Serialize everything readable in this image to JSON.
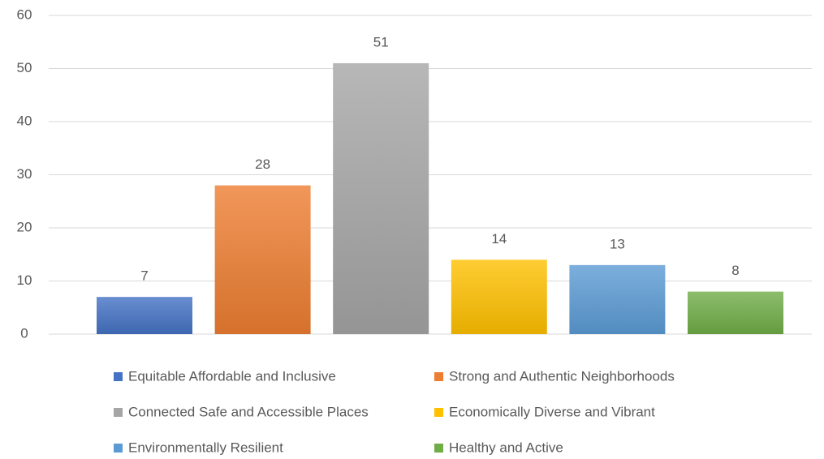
{
  "chart_data": {
    "type": "bar",
    "series": [
      {
        "name": "Equitable Affordable and Inclusive",
        "color": "#4472c4",
        "values": [
          7
        ]
      },
      {
        "name": "Strong and Authentic Neighborhoods",
        "color": "#ed7d31",
        "values": [
          28
        ]
      },
      {
        "name": "Connected Safe and Accessible Places",
        "color": "#a5a5a5",
        "values": [
          51
        ]
      },
      {
        "name": "Economically Diverse and Vibrant",
        "color": "#ffc000",
        "values": [
          14
        ]
      },
      {
        "name": "Environmentally Resilient",
        "color": "#5b9bd5",
        "values": [
          13
        ]
      },
      {
        "name": "Healthy and Active",
        "color": "#70ad47",
        "values": [
          8
        ]
      }
    ],
    "ylim": [
      0,
      60
    ],
    "yticks": [
      0,
      10,
      20,
      30,
      40,
      50,
      60
    ],
    "grid": true,
    "legend": "bottom"
  }
}
